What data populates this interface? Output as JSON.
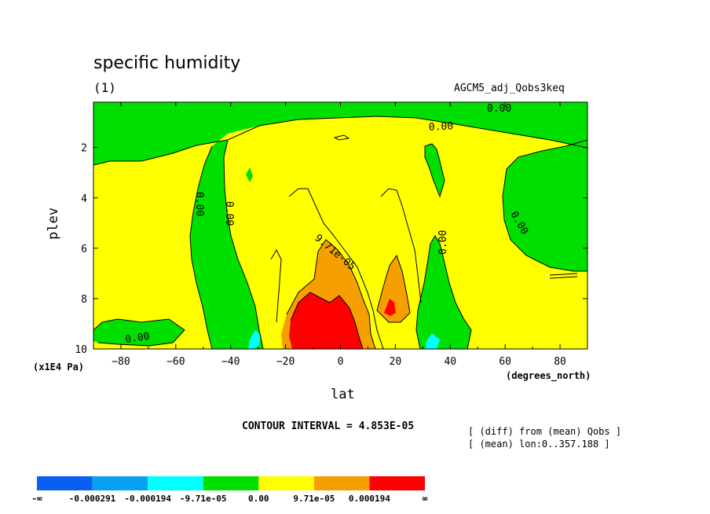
{
  "header": {
    "title": "specific humidity",
    "subtitle": "(1)",
    "run_name": "AGCM5_adj_Qobs3keq"
  },
  "footer": {
    "contour_interval": "CONTOUR INTERVAL = 4.853E-05",
    "note_diff": "[ (diff) from (mean) Qobs ]",
    "note_mean": "[ (mean) lon:0..357.188 ]"
  },
  "chart_data": {
    "type": "contour",
    "title": "specific humidity",
    "xlabel": "lat",
    "xunit": "(degrees_north)",
    "ylabel": "plev",
    "yunit": "(x1E4 Pa)",
    "xlim": [
      -90,
      90
    ],
    "ylim": [
      10,
      0.2
    ],
    "xticks": [
      -80,
      -60,
      -40,
      -20,
      0,
      20,
      40,
      60,
      80
    ],
    "xtick_labels": [
      "−80",
      "−60",
      "−40",
      "−20",
      "0",
      "20",
      "40",
      "60",
      "80"
    ],
    "yticks": [
      2,
      4,
      6,
      8,
      10
    ],
    "ytick_labels": [
      "2",
      "4",
      "6",
      "8",
      "10"
    ],
    "contour_labels": [
      "0.00",
      "0.00",
      "0.00",
      "0.00",
      "0.00",
      "0.00",
      "0.00",
      "9.71e-05"
    ],
    "colorbar": {
      "colors": [
        "#0a5ff2",
        "#0aa0f0",
        "#00ffff",
        "#00e000",
        "#ffff00",
        "#f5a000",
        "#ff0000"
      ],
      "labels": [
        "-∞",
        "-0.000291",
        "-0.000194",
        "-9.71e-05",
        "0.00",
        "9.71e-05",
        "0.000194",
        "∞"
      ]
    },
    "grid": false
  }
}
